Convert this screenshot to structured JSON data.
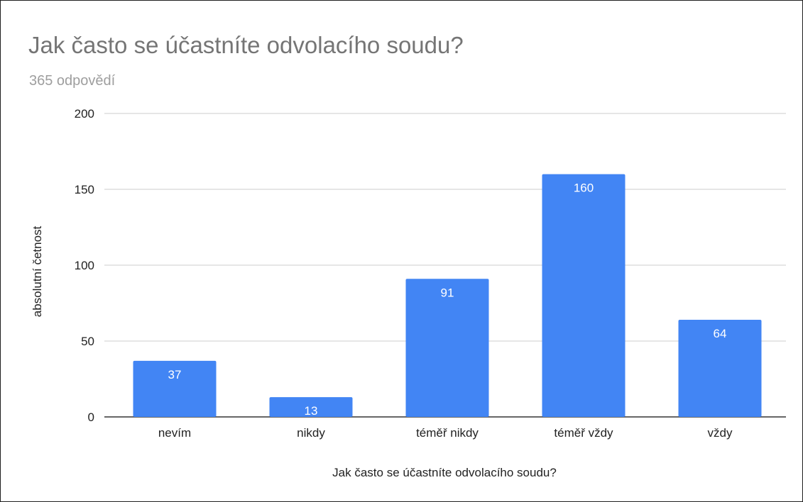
{
  "chart_data": {
    "type": "bar",
    "title": "Jak často se účastníte odvolacího soudu?",
    "subtitle": "365 odpovědí",
    "categories": [
      "nevím",
      "nikdy",
      "téměř nikdy",
      "téměř vždy",
      "vždy"
    ],
    "values": [
      37,
      13,
      91,
      160,
      64
    ],
    "xlabel": "Jak často se účastníte odvolacího soudu?",
    "ylabel": "absolutní četnost",
    "ylim": [
      0,
      200
    ],
    "yticks": [
      "0",
      "50",
      "100",
      "150",
      "200"
    ],
    "grid": true,
    "legend": "none",
    "bar_color": "#4285f4",
    "gridline_color": "#cccccc",
    "data_label_color": "#ffffff"
  }
}
